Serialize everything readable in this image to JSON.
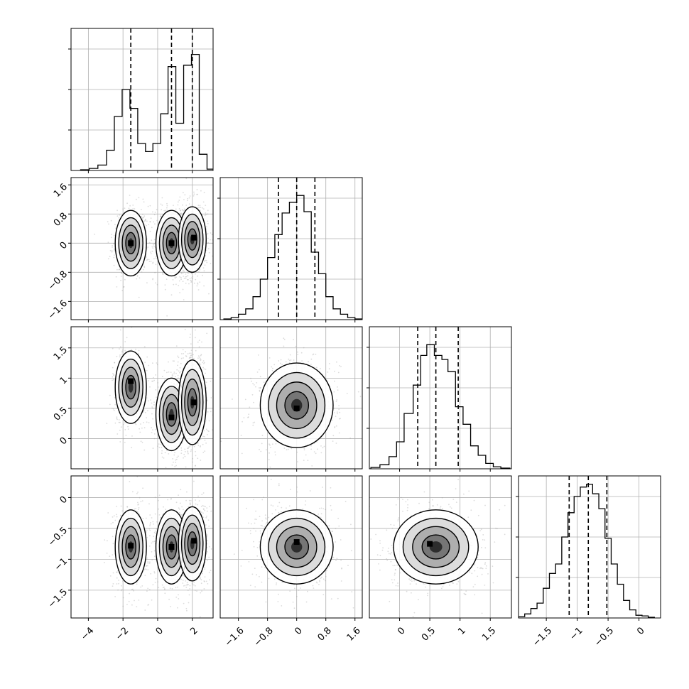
{
  "chart_data": {
    "type": "corner",
    "n_params": 4,
    "grid": true,
    "colors": {
      "axes": "#000000",
      "grid": "#b0b0b0",
      "density": "#000000",
      "scatter": "#9a9a9a"
    },
    "marginals": [
      {
        "param": 0,
        "xlim": [
          -5,
          3.2
        ],
        "ylim": [
          0,
          1
        ],
        "quantiles": [
          -1.55,
          0.8,
          2.0
        ],
        "bins": [
          [
            -4.2,
            0.005
          ],
          [
            -3.7,
            0.015
          ],
          [
            -3.2,
            0.04
          ],
          [
            -2.7,
            0.15
          ],
          [
            -2.3,
            0.4
          ],
          [
            -1.8,
            0.6
          ],
          [
            -1.4,
            0.46
          ],
          [
            -0.9,
            0.2
          ],
          [
            -0.5,
            0.14
          ],
          [
            -0.05,
            0.2
          ],
          [
            0.4,
            0.42
          ],
          [
            0.8,
            0.77
          ],
          [
            1.3,
            0.35
          ],
          [
            1.7,
            0.78
          ],
          [
            2.2,
            0.86
          ],
          [
            2.6,
            0.12
          ],
          [
            3.1,
            0.01
          ]
        ],
        "xticks": [
          -4,
          -2,
          0,
          2
        ]
      },
      {
        "param": 1,
        "xlim": [
          -2.1,
          1.8
        ],
        "ylim": [
          0,
          1
        ],
        "quantiles": [
          -0.5,
          0.0,
          0.5
        ],
        "bins": [
          [
            -1.9,
            0.005
          ],
          [
            -1.7,
            0.015
          ],
          [
            -1.5,
            0.04
          ],
          [
            -1.3,
            0.08
          ],
          [
            -1.1,
            0.17
          ],
          [
            -0.9,
            0.3
          ],
          [
            -0.7,
            0.46
          ],
          [
            -0.5,
            0.63
          ],
          [
            -0.3,
            0.79
          ],
          [
            -0.1,
            0.87
          ],
          [
            0.1,
            0.92
          ],
          [
            0.3,
            0.8
          ],
          [
            0.5,
            0.5
          ],
          [
            0.7,
            0.34
          ],
          [
            0.9,
            0.17
          ],
          [
            1.1,
            0.08
          ],
          [
            1.3,
            0.04
          ],
          [
            1.5,
            0.015
          ],
          [
            1.7,
            0.005
          ]
        ],
        "xticks": [
          -1.6,
          -0.8,
          0.0,
          0.8,
          1.6
        ]
      },
      {
        "param": 2,
        "xlim": [
          -0.5,
          1.85
        ],
        "ylim": [
          0,
          1
        ],
        "quantiles": [
          0.3,
          0.6,
          0.97
        ],
        "bins": [
          [
            -0.4,
            0.01
          ],
          [
            -0.25,
            0.03
          ],
          [
            -0.1,
            0.09
          ],
          [
            0.0,
            0.2
          ],
          [
            0.15,
            0.41
          ],
          [
            0.3,
            0.62
          ],
          [
            0.4,
            0.84
          ],
          [
            0.5,
            0.92
          ],
          [
            0.65,
            0.84
          ],
          [
            0.75,
            0.81
          ],
          [
            0.85,
            0.72
          ],
          [
            1.0,
            0.46
          ],
          [
            1.1,
            0.33
          ],
          [
            1.25,
            0.17
          ],
          [
            1.35,
            0.1
          ],
          [
            1.5,
            0.04
          ],
          [
            1.6,
            0.015
          ],
          [
            1.75,
            0.005
          ]
        ],
        "xticks": [
          0.0,
          0.5,
          1.0,
          1.5
        ]
      },
      {
        "param": 3,
        "xlim": [
          -1.95,
          0.35
        ],
        "ylim": [
          0,
          1
        ],
        "quantiles": [
          -1.13,
          -0.82,
          -0.52
        ],
        "bins": [
          [
            -1.9,
            0.01
          ],
          [
            -1.8,
            0.03
          ],
          [
            -1.7,
            0.07
          ],
          [
            -1.6,
            0.11
          ],
          [
            -1.5,
            0.22
          ],
          [
            -1.4,
            0.33
          ],
          [
            -1.3,
            0.4
          ],
          [
            -1.2,
            0.6
          ],
          [
            -1.1,
            0.78
          ],
          [
            -1.0,
            0.9
          ],
          [
            -0.9,
            0.97
          ],
          [
            -0.8,
            0.99
          ],
          [
            -0.7,
            0.92
          ],
          [
            -0.6,
            0.81
          ],
          [
            -0.5,
            0.59
          ],
          [
            -0.4,
            0.4
          ],
          [
            -0.3,
            0.25
          ],
          [
            -0.2,
            0.13
          ],
          [
            -0.1,
            0.06
          ],
          [
            0.0,
            0.02
          ],
          [
            0.1,
            0.015
          ],
          [
            0.2,
            0.005
          ]
        ],
        "xticks": [
          -1.5,
          -1.0,
          -0.5,
          0.0
        ]
      }
    ],
    "row_yticks": [
      [],
      [
        -1.6,
        -0.8,
        0.0,
        0.8,
        1.6
      ],
      [
        0.0,
        0.5,
        1.0,
        1.5
      ],
      [
        -1.5,
        -1.0,
        -0.5,
        0.0
      ]
    ],
    "joints": [
      {
        "row": 1,
        "col": 0,
        "xlim": [
          -5,
          3.2
        ],
        "ylim": [
          -2.1,
          1.8
        ],
        "blobs": [
          {
            "cx": -1.55,
            "cy": 0.0,
            "sx": 0.45,
            "sy": 0.45,
            "w": 0.7,
            "peak": [
              -1.55,
              0.0
            ]
          },
          {
            "cx": 0.8,
            "cy": 0.0,
            "sx": 0.45,
            "sy": 0.45,
            "w": 0.8,
            "peak": [
              0.8,
              0.0
            ]
          },
          {
            "cx": 2.0,
            "cy": 0.1,
            "sx": 0.4,
            "sy": 0.45,
            "w": 1.0,
            "peak": [
              2.1,
              0.15
            ]
          }
        ]
      },
      {
        "row": 2,
        "col": 0,
        "xlim": [
          -5,
          3.2
        ],
        "ylim": [
          -0.5,
          1.85
        ],
        "blobs": [
          {
            "cx": -1.55,
            "cy": 0.85,
            "sx": 0.45,
            "sy": 0.3,
            "w": 0.7,
            "peak": [
              -1.55,
              0.95
            ]
          },
          {
            "cx": 0.8,
            "cy": 0.4,
            "sx": 0.45,
            "sy": 0.3,
            "w": 0.8,
            "peak": [
              0.8,
              0.35
            ]
          },
          {
            "cx": 2.0,
            "cy": 0.6,
            "sx": 0.4,
            "sy": 0.35,
            "w": 1.0,
            "peak": [
              2.1,
              0.6
            ]
          }
        ]
      },
      {
        "row": 2,
        "col": 1,
        "xlim": [
          -2.1,
          1.8
        ],
        "ylim": [
          -0.5,
          1.85
        ],
        "blobs": [
          {
            "cx": 0.0,
            "cy": 0.55,
            "sx": 0.5,
            "sy": 0.35,
            "w": 1.0,
            "peak": [
              0.0,
              0.5
            ]
          }
        ]
      },
      {
        "row": 3,
        "col": 0,
        "xlim": [
          -5,
          3.2
        ],
        "ylim": [
          -1.95,
          0.35
        ],
        "blobs": [
          {
            "cx": -1.55,
            "cy": -0.8,
            "sx": 0.45,
            "sy": 0.3,
            "w": 0.7,
            "peak": [
              -1.55,
              -0.78
            ]
          },
          {
            "cx": 0.8,
            "cy": -0.8,
            "sx": 0.45,
            "sy": 0.3,
            "w": 0.8,
            "peak": [
              0.8,
              -0.8
            ]
          },
          {
            "cx": 2.0,
            "cy": -0.75,
            "sx": 0.4,
            "sy": 0.3,
            "w": 1.0,
            "peak": [
              2.1,
              -0.7
            ]
          }
        ]
      },
      {
        "row": 3,
        "col": 1,
        "xlim": [
          -2.1,
          1.8
        ],
        "ylim": [
          -1.95,
          0.35
        ],
        "blobs": [
          {
            "cx": 0.0,
            "cy": -0.8,
            "sx": 0.5,
            "sy": 0.3,
            "w": 1.0,
            "peak": [
              0.0,
              -0.72
            ]
          }
        ]
      },
      {
        "row": 3,
        "col": 2,
        "xlim": [
          -0.5,
          1.85
        ],
        "ylim": [
          -1.95,
          0.35
        ],
        "blobs": [
          {
            "cx": 0.6,
            "cy": -0.8,
            "sx": 0.35,
            "sy": 0.3,
            "w": 1.0,
            "peak": [
              0.5,
              -0.75
            ]
          }
        ]
      }
    ]
  }
}
